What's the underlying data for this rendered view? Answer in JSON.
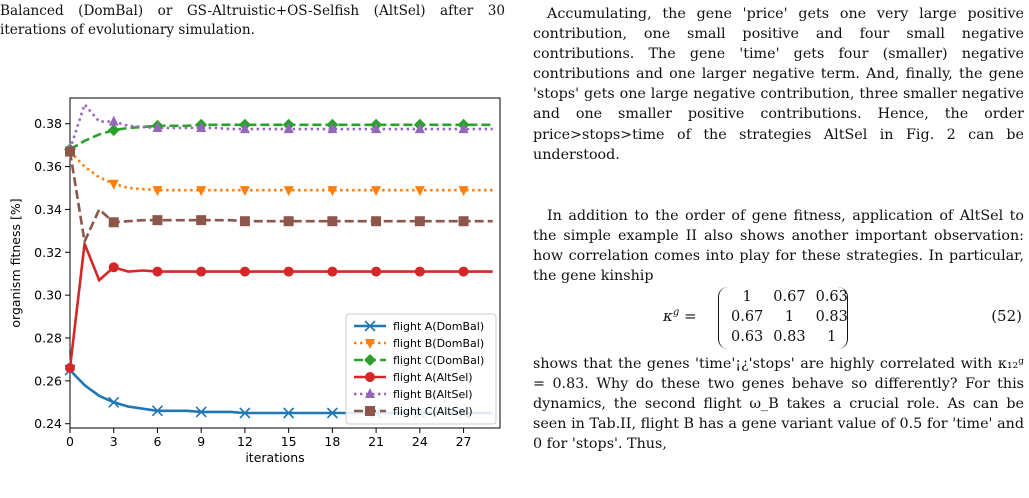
{
  "caption": {
    "text": "Balanced (DomBal) or GS-Altruistic+OS-Selfish (AltSel) after 30 iterations of evolutionary simulation."
  },
  "body": {
    "p1": "Accumulating, the gene 'price' gets one very large positive contribution, one small positive and four small negative contributions. The gene 'time' gets four (smaller) negative contributions and one larger negative term. And, finally, the gene 'stops' gets one large negative contribution, three smaller negative and one smaller positive contributions. Hence, the order price>stops>time of the strategies AltSel in Fig. 2 can be understood.",
    "p2": "In addition to the order of gene fitness, application of AltSel to the simple example II also shows another important observation: how correlation comes into play for these strategies. In particular, the gene kinship",
    "p3": "shows that the genes 'time'¡¿'stops' are highly correlated with κ₁₂ᵍ = 0.83. Why do these two genes behave so differently? For this dynamics, the second flight ω_B takes a crucial role. As can be seen in Tab.II, flight B has a gene variant value of 0.5 for 'time' and 0 for 'stops'. Thus,"
  },
  "equation": {
    "lhs": "κ",
    "sup": "g",
    "equals": "=",
    "rows": [
      [
        "1",
        "0.67",
        "0.63"
      ],
      [
        "0.67",
        "1",
        "0.83"
      ],
      [
        "0.63",
        "0.83",
        "1"
      ]
    ],
    "label": "(52)"
  },
  "chart_data": {
    "type": "line",
    "xlabel": "iterations",
    "ylabel": "organism fitness [%]",
    "xlim": [
      0,
      29.5
    ],
    "ylim": [
      0.238,
      0.392
    ],
    "xticks": [
      0,
      3,
      6,
      9,
      12,
      15,
      18,
      21,
      24,
      27
    ],
    "yticks": [
      0.24,
      0.26,
      0.28,
      0.3,
      0.32,
      0.34,
      0.36,
      0.38
    ],
    "ytick_labels": [
      "0.24",
      "0.26",
      "0.28",
      "0.30",
      "0.32",
      "0.34",
      "0.36",
      "0.38"
    ],
    "grid": false,
    "legend_position": "bottom-right",
    "series": [
      {
        "name": "flight A(DomBal)",
        "color": "#1f77b4",
        "dash": "solid",
        "marker": "x",
        "x": [
          0,
          1,
          2,
          3,
          4,
          5,
          6,
          7,
          8,
          9,
          10,
          11,
          12,
          13,
          14,
          15,
          16,
          17,
          18,
          19,
          20,
          21,
          22,
          23,
          24,
          25,
          26,
          27,
          28,
          29
        ],
        "y": [
          0.265,
          0.258,
          0.253,
          0.25,
          0.248,
          0.247,
          0.246,
          0.246,
          0.246,
          0.2455,
          0.2455,
          0.2455,
          0.245,
          0.245,
          0.245,
          0.245,
          0.245,
          0.245,
          0.245,
          0.245,
          0.245,
          0.245,
          0.245,
          0.245,
          0.245,
          0.245,
          0.245,
          0.245,
          0.245,
          0.245
        ]
      },
      {
        "name": "flight B(DomBal)",
        "color": "#ff7f0e",
        "dash": "dotted",
        "marker": "triangle-down",
        "x": [
          0,
          1,
          2,
          3,
          4,
          5,
          6,
          7,
          8,
          9,
          10,
          11,
          12,
          13,
          14,
          15,
          16,
          17,
          18,
          19,
          20,
          21,
          22,
          23,
          24,
          25,
          26,
          27,
          28,
          29
        ],
        "y": [
          0.367,
          0.36,
          0.355,
          0.352,
          0.35,
          0.3495,
          0.349,
          0.349,
          0.349,
          0.349,
          0.349,
          0.349,
          0.349,
          0.349,
          0.349,
          0.349,
          0.349,
          0.349,
          0.349,
          0.349,
          0.349,
          0.349,
          0.349,
          0.349,
          0.349,
          0.349,
          0.349,
          0.349,
          0.349,
          0.349
        ]
      },
      {
        "name": "flight C(DomBal)",
        "color": "#2ca02c",
        "dash": "dashed",
        "marker": "diamond",
        "x": [
          0,
          1,
          2,
          3,
          4,
          5,
          6,
          7,
          8,
          9,
          10,
          11,
          12,
          13,
          14,
          15,
          16,
          17,
          18,
          19,
          20,
          21,
          22,
          23,
          24,
          25,
          26,
          27,
          28,
          29
        ],
        "y": [
          0.368,
          0.372,
          0.375,
          0.377,
          0.378,
          0.3785,
          0.379,
          0.379,
          0.379,
          0.3795,
          0.3795,
          0.3795,
          0.3795,
          0.3795,
          0.3795,
          0.3795,
          0.3795,
          0.3795,
          0.3795,
          0.3795,
          0.3795,
          0.3795,
          0.3795,
          0.3795,
          0.3795,
          0.3795,
          0.3795,
          0.3795,
          0.3795,
          0.3795
        ]
      },
      {
        "name": "flight A(AltSel)",
        "color": "#d62728",
        "dash": "solid",
        "marker": "circle",
        "x": [
          0,
          1,
          2,
          3,
          4,
          5,
          6,
          7,
          8,
          9,
          10,
          11,
          12,
          13,
          14,
          15,
          16,
          17,
          18,
          19,
          20,
          21,
          22,
          23,
          24,
          25,
          26,
          27,
          28,
          29
        ],
        "y": [
          0.266,
          0.324,
          0.307,
          0.313,
          0.311,
          0.3115,
          0.311,
          0.311,
          0.311,
          0.311,
          0.311,
          0.311,
          0.311,
          0.311,
          0.311,
          0.311,
          0.311,
          0.311,
          0.311,
          0.311,
          0.311,
          0.311,
          0.311,
          0.311,
          0.311,
          0.311,
          0.311,
          0.311,
          0.311,
          0.311
        ]
      },
      {
        "name": "flight B(AltSel)",
        "color": "#9467bd",
        "dash": "dotted",
        "marker": "triangle-up",
        "x": [
          0,
          1,
          2,
          3,
          4,
          5,
          6,
          7,
          8,
          9,
          10,
          11,
          12,
          13,
          14,
          15,
          16,
          17,
          18,
          19,
          20,
          21,
          22,
          23,
          24,
          25,
          26,
          27,
          28,
          29
        ],
        "y": [
          0.368,
          0.389,
          0.381,
          0.381,
          0.379,
          0.3785,
          0.378,
          0.378,
          0.378,
          0.378,
          0.378,
          0.3775,
          0.3775,
          0.3775,
          0.3775,
          0.3775,
          0.3775,
          0.3775,
          0.3775,
          0.3775,
          0.3775,
          0.3775,
          0.3775,
          0.3775,
          0.3775,
          0.3775,
          0.3775,
          0.3775,
          0.3775,
          0.3775
        ]
      },
      {
        "name": "flight C(AltSel)",
        "color": "#8c564b",
        "dash": "dashed",
        "marker": "square",
        "x": [
          0,
          1,
          2,
          3,
          4,
          5,
          6,
          7,
          8,
          9,
          10,
          11,
          12,
          13,
          14,
          15,
          16,
          17,
          18,
          19,
          20,
          21,
          22,
          23,
          24,
          25,
          26,
          27,
          28,
          29
        ],
        "y": [
          0.367,
          0.325,
          0.34,
          0.334,
          0.3345,
          0.335,
          0.335,
          0.335,
          0.335,
          0.335,
          0.335,
          0.335,
          0.3345,
          0.3345,
          0.3345,
          0.3345,
          0.3345,
          0.3345,
          0.3345,
          0.3345,
          0.3345,
          0.3345,
          0.3345,
          0.3345,
          0.3345,
          0.3345,
          0.3345,
          0.3345,
          0.3345,
          0.3345
        ]
      }
    ]
  }
}
